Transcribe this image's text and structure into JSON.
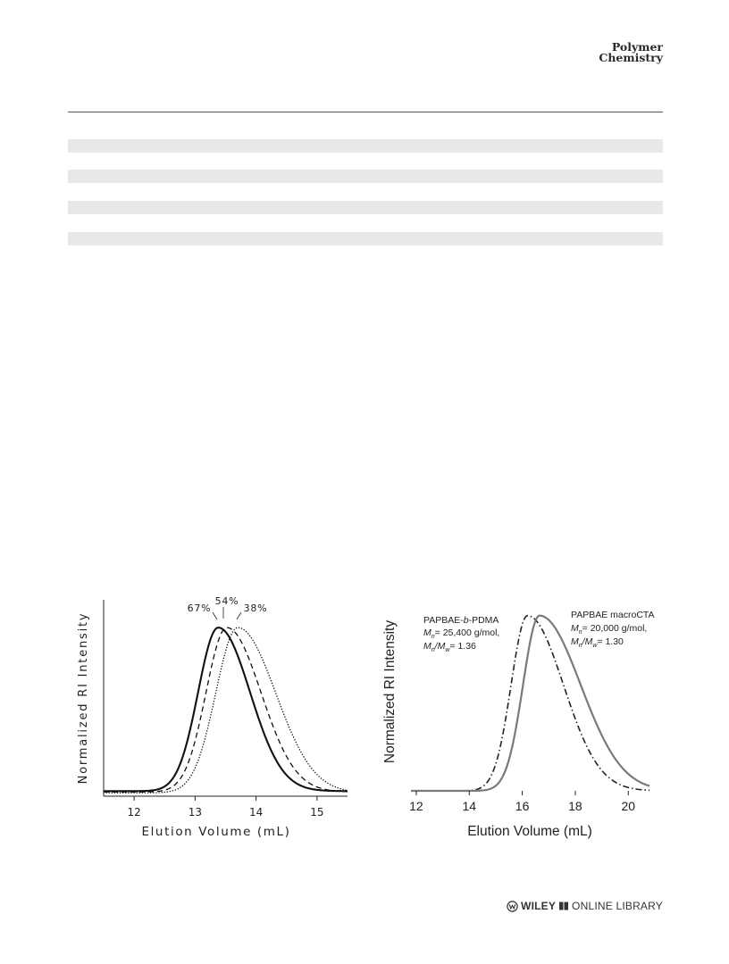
{
  "header": {
    "journal_line1": "Polymer",
    "journal_line2": "Chemistry"
  },
  "footer": {
    "publisher": "WILEY",
    "library": "ONLINE LIBRARY"
  },
  "chart_data": [
    {
      "type": "line",
      "xlabel": "Elution Volume (mL)",
      "ylabel": "Normalized RI Intensity",
      "xlim": [
        11.5,
        15.5
      ],
      "xticks": [
        12,
        13,
        14,
        15
      ],
      "ylim": [
        0,
        1.08
      ],
      "annotations": [
        "67%",
        "54%",
        "38%"
      ],
      "series": [
        {
          "name": "67%",
          "style": "solid",
          "peak": 13.38,
          "sigma_left": 0.33,
          "sigma_right": 0.52,
          "baseline": 0.03
        },
        {
          "name": "54%",
          "style": "dashed",
          "peak": 13.52,
          "sigma_left": 0.34,
          "sigma_right": 0.56,
          "baseline": 0.025
        },
        {
          "name": "38%",
          "style": "dotted",
          "peak": 13.7,
          "sigma_left": 0.36,
          "sigma_right": 0.62,
          "baseline": 0.02
        }
      ]
    },
    {
      "type": "line",
      "xlabel": "Elution Volume (mL)",
      "ylabel": "Normalized RI Intensity",
      "xlim": [
        11.8,
        20.8
      ],
      "xticks": [
        12,
        14,
        16,
        18,
        20
      ],
      "ylim": [
        0,
        1.08
      ],
      "legend": {
        "left": {
          "name": "PAPBAE-b-PDMA",
          "mn_label": "M",
          "mn_sub": "n",
          "mn_value": "= 25,400 g/mol,",
          "pdi_label": "M",
          "pdi_sub1": "n",
          "pdi_mid": "/M",
          "pdi_sub2": "w",
          "pdi_value": "= 1.36"
        },
        "right": {
          "name": "PAPBAE macroCTA",
          "mn_label": "M",
          "mn_sub": "n",
          "mn_value": "= 20,000 g/mol,",
          "pdi_label": "M",
          "pdi_sub1": "n",
          "pdi_mid": "/M",
          "pdi_sub2": "w",
          "pdi_value": "= 1.30"
        }
      },
      "series": [
        {
          "name": "PAPBAE-b-PDMA",
          "style": "dashdot",
          "color": "#222222",
          "peak": 16.2,
          "sigma_left": 0.62,
          "sigma_right": 1.35,
          "baseline": 0.0
        },
        {
          "name": "PAPBAE macroCTA",
          "style": "solid",
          "color": "#7a7a7a",
          "peak": 16.65,
          "sigma_left": 0.62,
          "sigma_right": 1.55,
          "baseline": 0.0
        }
      ]
    }
  ]
}
